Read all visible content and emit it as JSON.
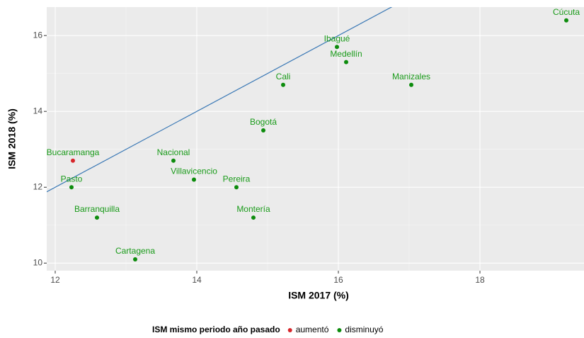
{
  "chart_data": {
    "type": "scatter",
    "xlabel": "ISM 2017 (%)",
    "ylabel": "ISM 2018 (%)",
    "xlim": [
      11.88,
      19.47
    ],
    "ylim": [
      9.8,
      16.75
    ],
    "xticks": [
      12,
      14,
      16,
      18
    ],
    "yticks": [
      10,
      12,
      14,
      16
    ],
    "grid": true,
    "minor_grid": true,
    "diagonal": true,
    "diagonal_color": "#3a78b5",
    "label_color": "#1a9b1a",
    "legend_title": "ISM mismo periodo año pasado",
    "legend_position": "bottom",
    "series": [
      {
        "name": "aumentó",
        "color": "#d7262b",
        "x": [
          12.25
        ],
        "values": [
          12.7
        ],
        "labels": [
          "Bucaramanga"
        ]
      },
      {
        "name": "disminuyó",
        "color": "#0d8c0d",
        "x": [
          12.23,
          12.59,
          13.13,
          13.67,
          13.96,
          14.56,
          14.8,
          14.94,
          15.22,
          15.98,
          16.11,
          17.03,
          19.22
        ],
        "values": [
          12.0,
          11.2,
          10.1,
          12.7,
          12.2,
          12.0,
          11.2,
          13.5,
          14.7,
          15.7,
          15.3,
          14.7,
          16.4
        ],
        "labels": [
          "Pasto",
          "Barranquilla",
          "Cartagena",
          "Nacional",
          "Villavicencio",
          "Pereira",
          "Montería",
          "Bogotá",
          "Cali",
          "Ibagué",
          "Medellín",
          "Manizales",
          "Cúcuta"
        ]
      }
    ]
  }
}
